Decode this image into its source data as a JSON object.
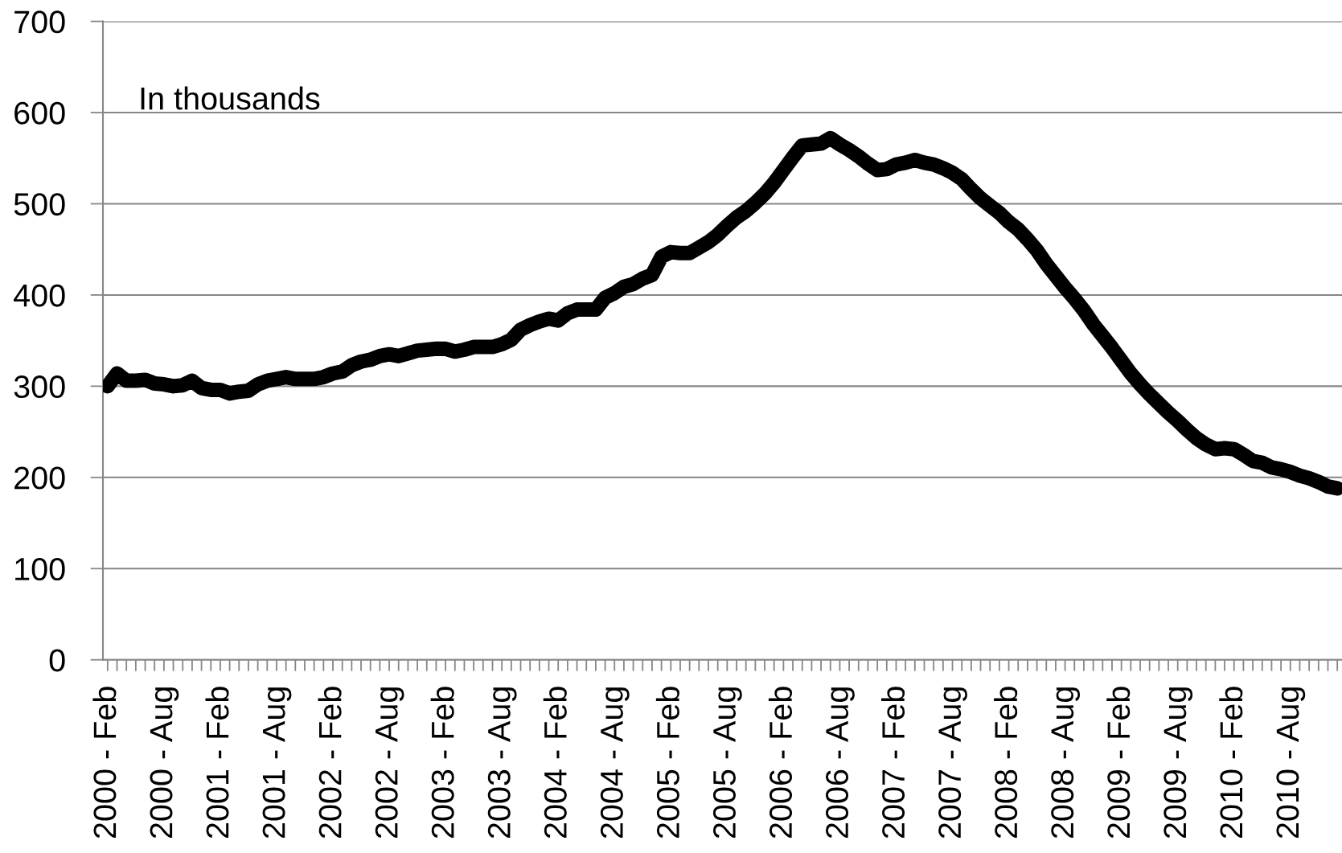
{
  "chart_data": {
    "type": "line",
    "annotations": [
      "In thousands"
    ],
    "categories": [
      "2000 - Feb",
      null,
      null,
      null,
      null,
      null,
      "2000 - Aug",
      null,
      null,
      null,
      null,
      null,
      "2001 - Feb",
      null,
      null,
      null,
      null,
      null,
      "2001 - Aug",
      null,
      null,
      null,
      null,
      null,
      "2002 - Feb",
      null,
      null,
      null,
      null,
      null,
      "2002 - Aug",
      null,
      null,
      null,
      null,
      null,
      "2003 - Feb",
      null,
      null,
      null,
      null,
      null,
      "2003 - Aug",
      null,
      null,
      null,
      null,
      null,
      "2004 - Feb",
      null,
      null,
      null,
      null,
      null,
      "2004 - Aug",
      null,
      null,
      null,
      null,
      null,
      "2005 - Feb",
      null,
      null,
      null,
      null,
      null,
      "2005 - Aug",
      null,
      null,
      null,
      null,
      null,
      "2006 - Feb",
      null,
      null,
      null,
      null,
      null,
      "2006 - Aug",
      null,
      null,
      null,
      null,
      null,
      "2007 - Feb",
      null,
      null,
      null,
      null,
      null,
      "2007 - Aug",
      null,
      null,
      null,
      null,
      null,
      "2008 - Feb",
      null,
      null,
      null,
      null,
      null,
      "2008 - Aug",
      null,
      null,
      null,
      null,
      null,
      "2009 - Feb",
      null,
      null,
      null,
      null,
      null,
      "2009 - Aug",
      null,
      null,
      null,
      null,
      null,
      "2010 - Feb",
      null,
      null,
      null,
      null,
      null,
      "2010 - Aug",
      null,
      null,
      null,
      null,
      null
    ],
    "series": [
      {
        "color": "#000000",
        "values": [
          300,
          314,
          306,
          306,
          307,
          303,
          302,
          300,
          301,
          306,
          298,
          296,
          296,
          292,
          294,
          295,
          302,
          306,
          308,
          310,
          308,
          308,
          308,
          310,
          314,
          316,
          323,
          327,
          329,
          333,
          335,
          333,
          336,
          339,
          340,
          341,
          341,
          338,
          340,
          343,
          343,
          343,
          346,
          351,
          362,
          367,
          371,
          374,
          372,
          380,
          384,
          384,
          384,
          397,
          402,
          409,
          412,
          418,
          422,
          442,
          447,
          446,
          446,
          452,
          458,
          466,
          476,
          485,
          492,
          501,
          511,
          523,
          537,
          551,
          564,
          565,
          566,
          572,
          565,
          559,
          552,
          544,
          537,
          538,
          543,
          545,
          548,
          545,
          543,
          539,
          534,
          527,
          516,
          506,
          498,
          490,
          480,
          472,
          461,
          449,
          434,
          421,
          408,
          396,
          383,
          368,
          355,
          342,
          328,
          314,
          302,
          291,
          281,
          271,
          262,
          252,
          243,
          236,
          231,
          232,
          231,
          225,
          218,
          216,
          211,
          209,
          206,
          202,
          199,
          195,
          190,
          188
        ]
      }
    ],
    "ylim": [
      0,
      700
    ],
    "yticks": [
      0,
      100,
      200,
      300,
      400,
      500,
      600,
      700
    ],
    "grid": "y"
  }
}
